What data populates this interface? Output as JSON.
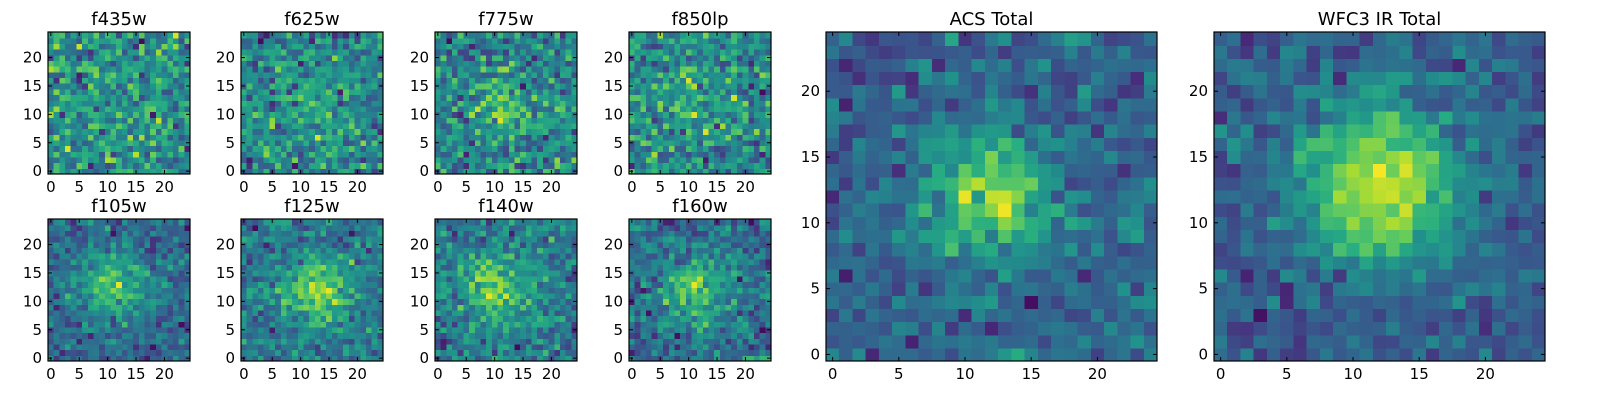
{
  "figure": {
    "colormap": "viridis",
    "colors": [
      "#440154",
      "#3b528b",
      "#21918c",
      "#5ec962",
      "#fde725"
    ],
    "frame_color": "#000000"
  },
  "chart_data": [
    {
      "type": "heatmap",
      "title": "f435w",
      "xlabel": "",
      "ylabel": "",
      "grid": false,
      "size": 25,
      "xlim": [
        0,
        24
      ],
      "ylim": [
        0,
        24
      ],
      "xticks": [
        0,
        5,
        10,
        15,
        20
      ],
      "yticks": [
        0,
        5,
        10,
        15,
        20
      ],
      "seed": 11,
      "peak": [
        12,
        12
      ],
      "sigma": 6.5,
      "signal": 0.08,
      "noise": 1.0,
      "clip_low": 0.03,
      "clip_high": 0.95
    },
    {
      "type": "heatmap",
      "title": "f625w",
      "xlabel": "",
      "ylabel": "",
      "grid": false,
      "size": 25,
      "xlim": [
        0,
        24
      ],
      "ylim": [
        0,
        24
      ],
      "xticks": [
        0,
        5,
        10,
        15,
        20
      ],
      "yticks": [
        0,
        5,
        10,
        15,
        20
      ],
      "seed": 23,
      "peak": [
        12,
        12
      ],
      "sigma": 4.5,
      "signal": 0.35,
      "noise": 0.95,
      "clip_low": 0.03,
      "clip_high": 0.95
    },
    {
      "type": "heatmap",
      "title": "f775w",
      "xlabel": "",
      "ylabel": "",
      "grid": false,
      "size": 25,
      "xlim": [
        0,
        24
      ],
      "ylim": [
        0,
        24
      ],
      "xticks": [
        0,
        5,
        10,
        15,
        20
      ],
      "yticks": [
        0,
        5,
        10,
        15,
        20
      ],
      "seed": 37,
      "peak": [
        12,
        11
      ],
      "sigma": 4.0,
      "signal": 0.45,
      "noise": 0.9,
      "clip_low": 0.03,
      "clip_high": 0.95
    },
    {
      "type": "heatmap",
      "title": "f850lp",
      "xlabel": "",
      "ylabel": "",
      "grid": false,
      "size": 25,
      "xlim": [
        0,
        24
      ],
      "ylim": [
        0,
        24
      ],
      "xticks": [
        0,
        5,
        10,
        15,
        20
      ],
      "yticks": [
        0,
        5,
        10,
        15,
        20
      ],
      "seed": 41,
      "peak": [
        12,
        12
      ],
      "sigma": 4.0,
      "signal": 0.3,
      "noise": 0.95,
      "clip_low": 0.03,
      "clip_high": 0.95
    },
    {
      "type": "heatmap",
      "title": "f105w",
      "xlabel": "",
      "ylabel": "",
      "grid": false,
      "size": 25,
      "xlim": [
        0,
        24
      ],
      "ylim": [
        0,
        24
      ],
      "xticks": [
        0,
        5,
        10,
        15,
        20
      ],
      "yticks": [
        0,
        5,
        10,
        15,
        20
      ],
      "seed": 53,
      "peak": [
        11,
        13
      ],
      "sigma": 4.2,
      "signal": 0.75,
      "noise": 0.55,
      "clip_low": 0.03,
      "clip_high": 0.97
    },
    {
      "type": "heatmap",
      "title": "f125w",
      "xlabel": "",
      "ylabel": "",
      "grid": false,
      "size": 25,
      "xlim": [
        0,
        24
      ],
      "ylim": [
        0,
        24
      ],
      "xticks": [
        0,
        5,
        10,
        15,
        20
      ],
      "yticks": [
        0,
        5,
        10,
        15,
        20
      ],
      "seed": 67,
      "peak": [
        13,
        12
      ],
      "sigma": 3.8,
      "signal": 0.75,
      "noise": 0.5,
      "clip_low": 0.03,
      "clip_high": 0.97
    },
    {
      "type": "heatmap",
      "title": "f140w",
      "xlabel": "",
      "ylabel": "",
      "grid": false,
      "size": 25,
      "xlim": [
        0,
        24
      ],
      "ylim": [
        0,
        24
      ],
      "xticks": [
        0,
        5,
        10,
        15,
        20
      ],
      "yticks": [
        0,
        5,
        10,
        15,
        20
      ],
      "seed": 79,
      "peak": [
        10,
        12
      ],
      "sigma": 4.0,
      "signal": 0.7,
      "noise": 0.55,
      "clip_low": 0.03,
      "clip_high": 0.97
    },
    {
      "type": "heatmap",
      "title": "f160w",
      "xlabel": "",
      "ylabel": "",
      "grid": false,
      "size": 25,
      "xlim": [
        0,
        24
      ],
      "ylim": [
        0,
        24
      ],
      "xticks": [
        0,
        5,
        10,
        15,
        20
      ],
      "yticks": [
        0,
        5,
        10,
        15,
        20
      ],
      "seed": 83,
      "peak": [
        11,
        12
      ],
      "sigma": 4.2,
      "signal": 0.7,
      "noise": 0.6,
      "clip_low": 0.03,
      "clip_high": 0.97
    },
    {
      "type": "heatmap",
      "title": "ACS Total",
      "xlabel": "",
      "ylabel": "",
      "grid": false,
      "size": 25,
      "xlim": [
        0,
        24
      ],
      "ylim": [
        0,
        24
      ],
      "xticks": [
        0,
        5,
        10,
        15,
        20
      ],
      "yticks": [
        0,
        5,
        10,
        15,
        20
      ],
      "seed": 97,
      "peak": [
        12,
        12
      ],
      "sigma": 3.5,
      "signal": 0.85,
      "noise": 0.45,
      "clip_low": 0.04,
      "clip_high": 0.98
    },
    {
      "type": "heatmap",
      "title": "WFC3 IR Total",
      "xlabel": "",
      "ylabel": "",
      "grid": false,
      "size": 25,
      "xlim": [
        0,
        24
      ],
      "ylim": [
        0,
        24
      ],
      "xticks": [
        0,
        5,
        10,
        15,
        20
      ],
      "yticks": [
        0,
        5,
        10,
        15,
        20
      ],
      "seed": 109,
      "peak": [
        12,
        13
      ],
      "sigma": 4.2,
      "signal": 0.95,
      "noise": 0.3,
      "clip_low": 0.05,
      "clip_high": 0.99
    }
  ]
}
